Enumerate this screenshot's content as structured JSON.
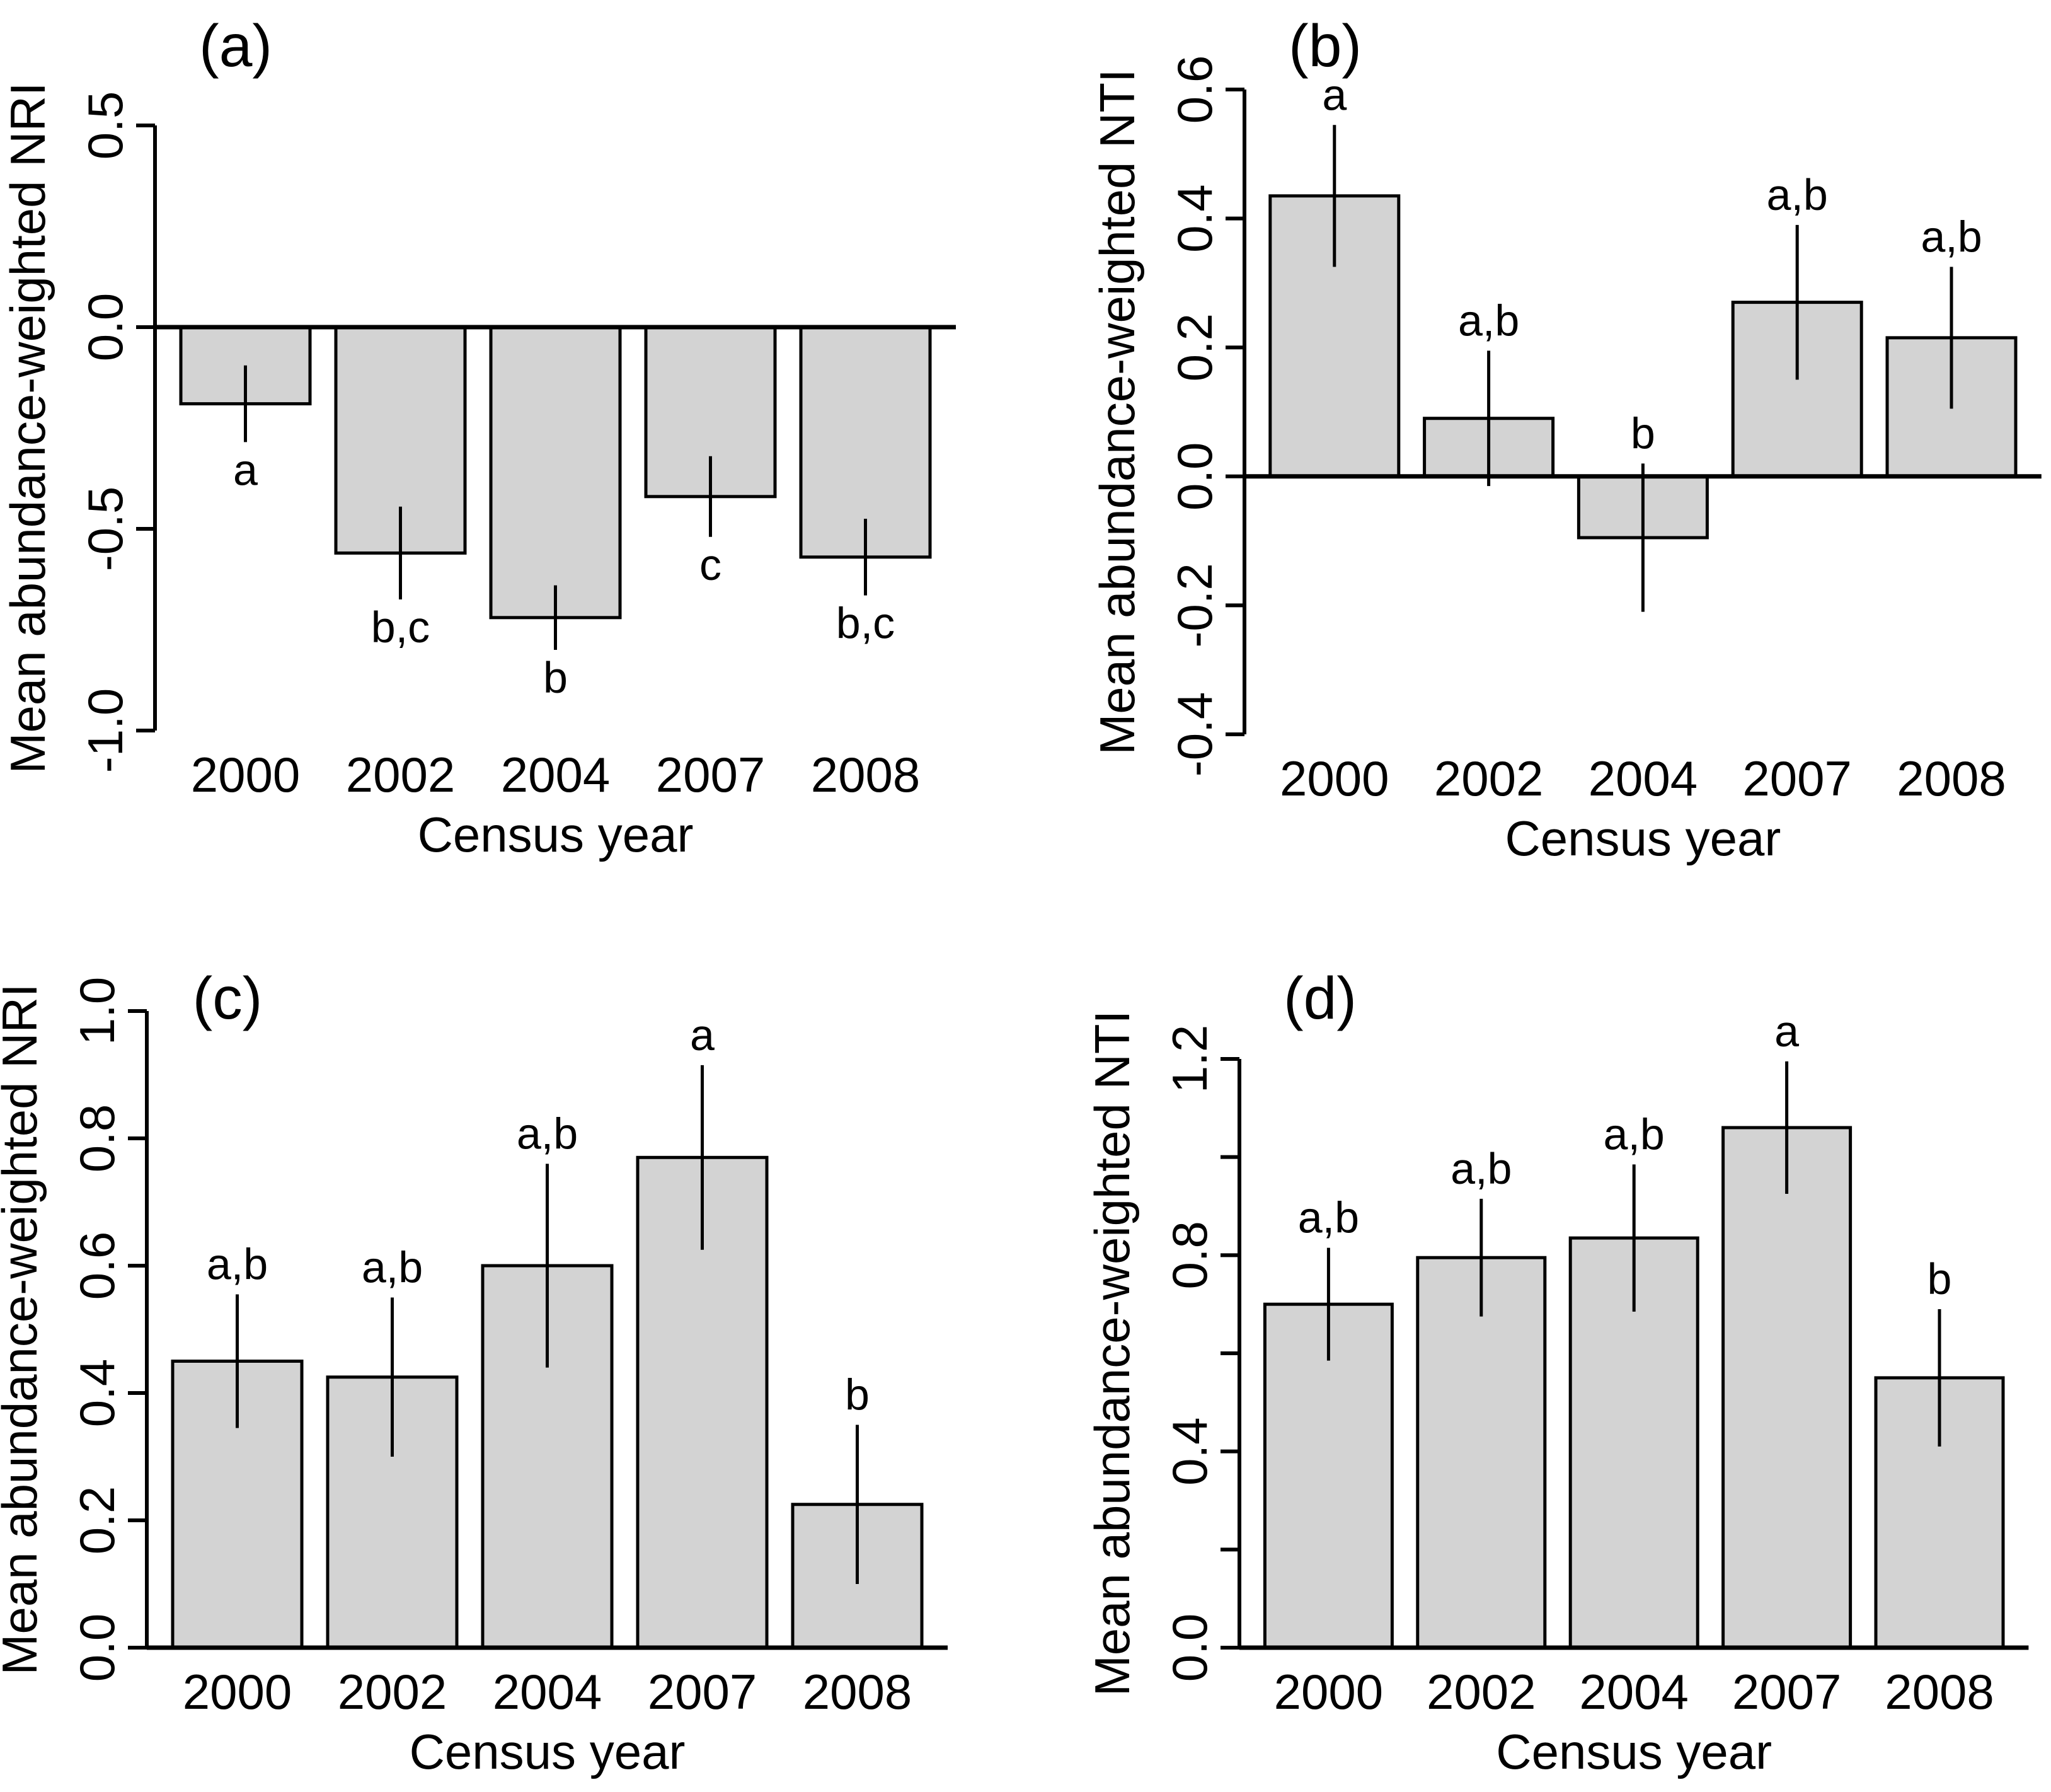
{
  "figure": {
    "background": "#ffffff",
    "line_color": "#000000",
    "bar_fill": "#d3d3d3",
    "xlabel": "Census year",
    "categories": [
      "2000",
      "2002",
      "2004",
      "2007",
      "2008"
    ]
  },
  "chart_data": [
    {
      "type": "bar",
      "panel_label": "(a)",
      "title": "",
      "ylabel": "Mean abundance-weighted NRI",
      "xlabel": "Census year",
      "categories": [
        "2000",
        "2002",
        "2004",
        "2007",
        "2008"
      ],
      "values": [
        -0.19,
        -0.56,
        -0.72,
        -0.42,
        -0.57
      ],
      "errors": [
        0.095,
        0.115,
        0.08,
        0.1,
        0.095
      ],
      "sig_labels": [
        "a",
        "b,c",
        "b",
        "c",
        "b,c"
      ],
      "sig_position": "below",
      "ylim": [
        -1.0,
        0.5
      ],
      "yticks": [
        0.5,
        0.0,
        -0.5,
        -1.0
      ],
      "ytick_labels": [
        "0.5",
        "0.0",
        "-0.5",
        "-1.0"
      ],
      "grid": false,
      "legend": "none",
      "error_caps": false
    },
    {
      "type": "bar",
      "panel_label": "(b)",
      "title": "",
      "ylabel": "Mean abundance-weighted NTI",
      "xlabel": "Census year",
      "categories": [
        "2000",
        "2002",
        "2004",
        "2007",
        "2008"
      ],
      "values": [
        0.435,
        0.09,
        -0.095,
        0.27,
        0.215
      ],
      "errors": [
        0.11,
        0.105,
        0.115,
        0.12,
        0.11
      ],
      "sig_labels": [
        "a",
        "a,b",
        "b",
        "a,b",
        "a,b"
      ],
      "sig_position": "above",
      "ylim": [
        -0.4,
        0.6
      ],
      "yticks": [
        0.6,
        0.4,
        0.2,
        0.0,
        -0.2,
        -0.4
      ],
      "ytick_labels": [
        "0.6",
        "0.4",
        "0.2",
        "0.0",
        "-0.2",
        "-0.4"
      ],
      "grid": false,
      "legend": "none",
      "error_caps": false
    },
    {
      "type": "bar",
      "panel_label": "(c)",
      "title": "",
      "ylabel": "Mean abundance-weighted NRI",
      "xlabel": "Census year",
      "categories": [
        "2000",
        "2002",
        "2004",
        "2007",
        "2008"
      ],
      "values": [
        0.45,
        0.425,
        0.6,
        0.77,
        0.225
      ],
      "errors": [
        0.105,
        0.125,
        0.16,
        0.145,
        0.125
      ],
      "sig_labels": [
        "a,b",
        "a,b",
        "a,b",
        "a",
        "b"
      ],
      "sig_position": "above",
      "ylim": [
        0.0,
        1.0
      ],
      "yticks": [
        1.0,
        0.8,
        0.6,
        0.4,
        0.2,
        0.0
      ],
      "ytick_labels": [
        "1.0",
        "0.8",
        "0.6",
        "0.4",
        "0.2",
        "0.0"
      ],
      "grid": false,
      "legend": "none",
      "error_caps": false
    },
    {
      "type": "bar",
      "panel_label": "(d)",
      "title": "",
      "ylabel": "Mean abundance-weighted NTI",
      "xlabel": "Census year",
      "categories": [
        "2000",
        "2002",
        "2004",
        "2007",
        "2008"
      ],
      "values": [
        0.7,
        0.795,
        0.835,
        1.06,
        0.55
      ],
      "errors": [
        0.115,
        0.12,
        0.15,
        0.135,
        0.14
      ],
      "sig_labels": [
        "a,b",
        "a,b",
        "a,b",
        "a",
        "b"
      ],
      "sig_position": "above",
      "ylim": [
        0.0,
        1.2
      ],
      "yticks": [
        1.2,
        1.0,
        0.8,
        0.6,
        0.4,
        0.2,
        0.0
      ],
      "ytick_labels": [
        "1.2",
        "",
        "0.8",
        "",
        "0.4",
        "",
        "0.0"
      ],
      "grid": false,
      "legend": "none",
      "error_caps": false
    }
  ]
}
